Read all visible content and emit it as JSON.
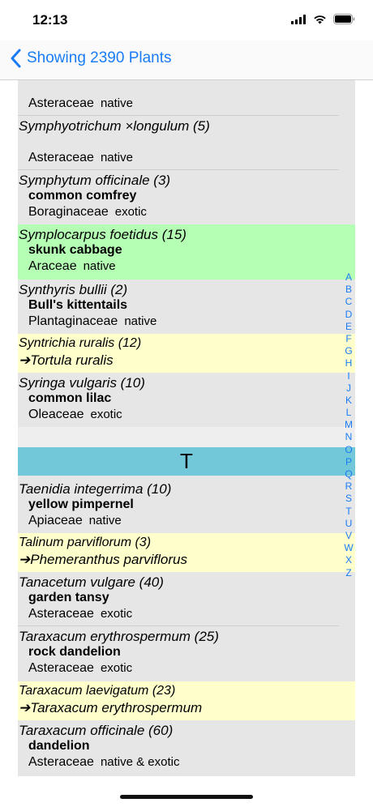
{
  "status_bar": {
    "time": "12:13",
    "icons": [
      "signal-icon",
      "wifi-icon",
      "battery-icon"
    ]
  },
  "nav": {
    "back_label": "Showing 2390 Plants"
  },
  "rows": {
    "r0": {
      "family": "Asteraceae",
      "status": "native"
    },
    "r1": {
      "sci": "Symphyotrichum ×longulum  (5)",
      "family": "Asteraceae",
      "status": "native"
    },
    "r2": {
      "sci": "Symphytum officinale  (3)",
      "common": "common comfrey",
      "family": "Boraginaceae",
      "status": "exotic"
    },
    "r3": {
      "sci": "Symplocarpus foetidus  (15)",
      "common": "skunk cabbage",
      "family": "Araceae",
      "status": "native"
    },
    "r4": {
      "sci": "Synthyris bullii  (2)",
      "common": "Bull's kittentails",
      "family": "Plantaginaceae",
      "status": "native"
    },
    "r5": {
      "sci": "Syntrichia ruralis  (12)",
      "target": "➔Tortula ruralis"
    },
    "r6": {
      "sci": "Syringa vulgaris  (10)",
      "common": "common lilac",
      "family": "Oleaceae",
      "status": "exotic"
    },
    "section": "T",
    "r7": {
      "sci": "Taenidia integerrima  (10)",
      "common": "yellow pimpernel",
      "family": "Apiaceae",
      "status": "native"
    },
    "r8": {
      "sci": "Talinum parviflorum  (3)",
      "target": "➔Phemeranthus parviflorus"
    },
    "r9": {
      "sci": "Tanacetum vulgare  (40)",
      "common": "garden tansy",
      "family": "Asteraceae",
      "status": "exotic"
    },
    "r10": {
      "sci": "Taraxacum erythrospermum  (25)",
      "common": "rock dandelion",
      "family": "Asteraceae",
      "status": "exotic"
    },
    "r11": {
      "sci": "Taraxacum laevigatum  (23)",
      "target": "➔Taraxacum erythrospermum"
    },
    "r12": {
      "sci": "Taraxacum officinale  (60)",
      "common": "dandelion",
      "family": "Asteraceae",
      "status": "native & exotic"
    }
  },
  "colors": {
    "accent": "#1a7cf5",
    "highlight_green": "#b5ffb5",
    "highlight_yellow": "#ffffcc",
    "section_header": "#72c7d9"
  },
  "index_letters": [
    "A",
    "B",
    "C",
    "D",
    "E",
    "F",
    "G",
    "H",
    "I",
    "J",
    "K",
    "L",
    "M",
    "N",
    "O",
    "P",
    "Q",
    "R",
    "S",
    "T",
    "U",
    "V",
    "W",
    "X",
    "Z"
  ]
}
